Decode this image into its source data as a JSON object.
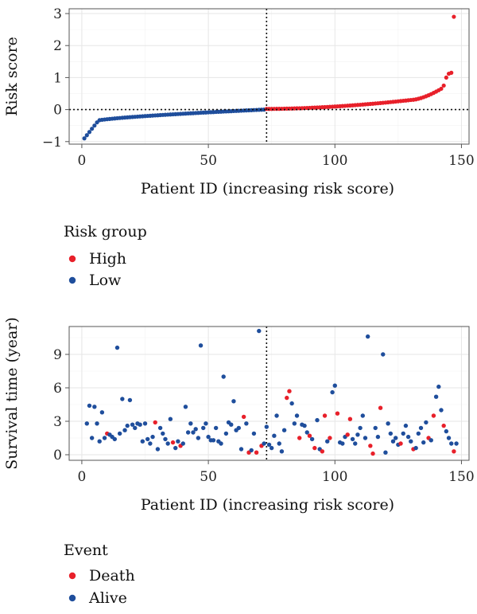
{
  "chart_data": [
    {
      "type": "scatter",
      "id": "risk_score_plot",
      "title": "",
      "xlabel": "Patient ID (increasing risk score)",
      "ylabel": "Risk score",
      "xlim": [
        -5,
        153
      ],
      "ylim": [
        -1.08,
        3.15
      ],
      "x_ticks": [
        0,
        50,
        100,
        150
      ],
      "y_ticks": [
        -1,
        0,
        1,
        2,
        3
      ],
      "grid": true,
      "cutoff_x": 73,
      "cutoff_y": 0,
      "n_low": 72,
      "n_high": 75,
      "colors": {
        "High": "#e8202a",
        "Low": "#1f4e9c"
      },
      "legend_title": "Risk group",
      "legend_entries": [
        "High",
        "Low"
      ],
      "legend_position": "bottom"
    },
    {
      "type": "scatter",
      "id": "survival_plot",
      "title": "",
      "xlabel": "Patient ID (increasing risk score)",
      "ylabel": "Survival time (year)",
      "xlim": [
        -5,
        153
      ],
      "ylim": [
        -0.5,
        11.5
      ],
      "x_ticks": [
        0,
        50,
        100,
        150
      ],
      "y_ticks": [
        0,
        3,
        6,
        9
      ],
      "grid": true,
      "cutoff_x": 73,
      "colors": {
        "Death": "#e8202a",
        "Alive": "#1f4e9c"
      },
      "legend_title": "Event",
      "legend_entries": [
        "Death",
        "Alive"
      ],
      "legend_position": "bottom",
      "points": [
        [
          2,
          2.8,
          "Alive"
        ],
        [
          3,
          4.4,
          "Alive"
        ],
        [
          4,
          1.5,
          "Alive"
        ],
        [
          5,
          4.3,
          "Alive"
        ],
        [
          6,
          2.8,
          "Alive"
        ],
        [
          7,
          1.2,
          "Alive"
        ],
        [
          8,
          3.8,
          "Alive"
        ],
        [
          9,
          1.5,
          "Alive"
        ],
        [
          10,
          1.9,
          "Death"
        ],
        [
          11,
          1.8,
          "Alive"
        ],
        [
          12,
          1.6,
          "Alive"
        ],
        [
          13,
          1.4,
          "Alive"
        ],
        [
          14,
          9.6,
          "Alive"
        ],
        [
          15,
          1.9,
          "Alive"
        ],
        [
          16,
          5.0,
          "Alive"
        ],
        [
          17,
          2.2,
          "Alive"
        ],
        [
          18,
          2.6,
          "Alive"
        ],
        [
          19,
          4.9,
          "Alive"
        ],
        [
          20,
          2.7,
          "Alive"
        ],
        [
          21,
          2.4,
          "Alive"
        ],
        [
          22,
          2.8,
          "Alive"
        ],
        [
          23,
          2.7,
          "Alive"
        ],
        [
          24,
          1.2,
          "Alive"
        ],
        [
          25,
          2.8,
          "Alive"
        ],
        [
          26,
          1.4,
          "Alive"
        ],
        [
          27,
          1.0,
          "Alive"
        ],
        [
          28,
          1.6,
          "Alive"
        ],
        [
          29,
          2.9,
          "Death"
        ],
        [
          30,
          0.5,
          "Alive"
        ],
        [
          31,
          2.4,
          "Alive"
        ],
        [
          32,
          1.9,
          "Alive"
        ],
        [
          33,
          1.4,
          "Alive"
        ],
        [
          34,
          1.0,
          "Alive"
        ],
        [
          35,
          3.2,
          "Alive"
        ],
        [
          36,
          1.1,
          "Death"
        ],
        [
          37,
          0.6,
          "Alive"
        ],
        [
          38,
          1.2,
          "Alive"
        ],
        [
          39,
          0.8,
          "Death"
        ],
        [
          40,
          1.0,
          "Alive"
        ],
        [
          41,
          4.3,
          "Alive"
        ],
        [
          42,
          2.0,
          "Alive"
        ],
        [
          43,
          2.8,
          "Alive"
        ],
        [
          44,
          2.0,
          "Alive"
        ],
        [
          45,
          2.3,
          "Alive"
        ],
        [
          46,
          1.5,
          "Alive"
        ],
        [
          47,
          9.8,
          "Alive"
        ],
        [
          48,
          2.4,
          "Alive"
        ],
        [
          49,
          2.8,
          "Alive"
        ],
        [
          50,
          1.6,
          "Alive"
        ],
        [
          51,
          1.3,
          "Alive"
        ],
        [
          52,
          1.3,
          "Alive"
        ],
        [
          53,
          2.4,
          "Alive"
        ],
        [
          54,
          1.2,
          "Alive"
        ],
        [
          55,
          1.0,
          "Alive"
        ],
        [
          56,
          7.0,
          "Alive"
        ],
        [
          57,
          1.9,
          "Alive"
        ],
        [
          58,
          2.9,
          "Alive"
        ],
        [
          59,
          2.7,
          "Alive"
        ],
        [
          60,
          4.8,
          "Alive"
        ],
        [
          61,
          2.2,
          "Alive"
        ],
        [
          62,
          2.4,
          "Alive"
        ],
        [
          63,
          0.5,
          "Alive"
        ],
        [
          64,
          3.4,
          "Death"
        ],
        [
          65,
          2.8,
          "Alive"
        ],
        [
          66,
          0.2,
          "Death"
        ],
        [
          67,
          0.4,
          "Alive"
        ],
        [
          68,
          1.9,
          "Alive"
        ],
        [
          69,
          0.2,
          "Death"
        ],
        [
          70,
          11.1,
          "Alive"
        ],
        [
          71,
          0.8,
          "Death"
        ],
        [
          72,
          1.0,
          "Alive"
        ],
        [
          73,
          2.5,
          "Alive"
        ],
        [
          74,
          0.9,
          "Alive"
        ],
        [
          75,
          0.6,
          "Alive"
        ],
        [
          76,
          1.7,
          "Alive"
        ],
        [
          77,
          3.5,
          "Alive"
        ],
        [
          78,
          1.0,
          "Alive"
        ],
        [
          79,
          0.3,
          "Alive"
        ],
        [
          80,
          2.2,
          "Alive"
        ],
        [
          81,
          5.1,
          "Death"
        ],
        [
          82,
          5.7,
          "Death"
        ],
        [
          83,
          4.6,
          "Alive"
        ],
        [
          84,
          2.8,
          "Alive"
        ],
        [
          85,
          3.5,
          "Alive"
        ],
        [
          86,
          1.5,
          "Death"
        ],
        [
          87,
          2.7,
          "Alive"
        ],
        [
          88,
          2.6,
          "Alive"
        ],
        [
          89,
          2.0,
          "Alive"
        ],
        [
          90,
          1.7,
          "Death"
        ],
        [
          91,
          1.4,
          "Alive"
        ],
        [
          92,
          0.6,
          "Death"
        ],
        [
          93,
          3.1,
          "Alive"
        ],
        [
          94,
          0.5,
          "Alive"
        ],
        [
          95,
          0.3,
          "Death"
        ],
        [
          96,
          3.5,
          "Death"
        ],
        [
          97,
          1.2,
          "Alive"
        ],
        [
          98,
          1.5,
          "Death"
        ],
        [
          99,
          5.6,
          "Alive"
        ],
        [
          100,
          6.2,
          "Alive"
        ],
        [
          101,
          3.7,
          "Death"
        ],
        [
          102,
          1.1,
          "Alive"
        ],
        [
          103,
          1.0,
          "Alive"
        ],
        [
          104,
          1.6,
          "Alive"
        ],
        [
          105,
          1.8,
          "Death"
        ],
        [
          106,
          3.2,
          "Death"
        ],
        [
          107,
          1.4,
          "Alive"
        ],
        [
          108,
          1.0,
          "Alive"
        ],
        [
          109,
          1.8,
          "Alive"
        ],
        [
          110,
          2.4,
          "Alive"
        ],
        [
          111,
          3.5,
          "Alive"
        ],
        [
          112,
          1.5,
          "Alive"
        ],
        [
          113,
          10.6,
          "Alive"
        ],
        [
          114,
          0.8,
          "Death"
        ],
        [
          115,
          0.1,
          "Death"
        ],
        [
          116,
          2.4,
          "Alive"
        ],
        [
          117,
          1.6,
          "Alive"
        ],
        [
          118,
          4.2,
          "Death"
        ],
        [
          119,
          9.0,
          "Alive"
        ],
        [
          120,
          0.2,
          "Alive"
        ],
        [
          121,
          2.8,
          "Alive"
        ],
        [
          122,
          1.9,
          "Alive"
        ],
        [
          123,
          1.2,
          "Alive"
        ],
        [
          124,
          1.5,
          "Alive"
        ],
        [
          125,
          0.9,
          "Alive"
        ],
        [
          126,
          1.0,
          "Death"
        ],
        [
          127,
          1.9,
          "Alive"
        ],
        [
          128,
          2.6,
          "Alive"
        ],
        [
          129,
          1.6,
          "Alive"
        ],
        [
          130,
          1.2,
          "Alive"
        ],
        [
          131,
          0.5,
          "Death"
        ],
        [
          132,
          0.6,
          "Alive"
        ],
        [
          133,
          1.9,
          "Alive"
        ],
        [
          134,
          2.4,
          "Alive"
        ],
        [
          135,
          1.1,
          "Alive"
        ],
        [
          136,
          2.9,
          "Alive"
        ],
        [
          137,
          1.5,
          "Death"
        ],
        [
          138,
          1.3,
          "Alive"
        ],
        [
          139,
          3.5,
          "Death"
        ],
        [
          140,
          5.2,
          "Alive"
        ],
        [
          141,
          6.1,
          "Alive"
        ],
        [
          142,
          4.0,
          "Alive"
        ],
        [
          143,
          2.6,
          "Death"
        ],
        [
          144,
          2.1,
          "Alive"
        ],
        [
          145,
          1.5,
          "Alive"
        ],
        [
          146,
          1.0,
          "Alive"
        ],
        [
          147,
          0.3,
          "Death"
        ],
        [
          148,
          1.0,
          "Alive"
        ]
      ]
    }
  ]
}
